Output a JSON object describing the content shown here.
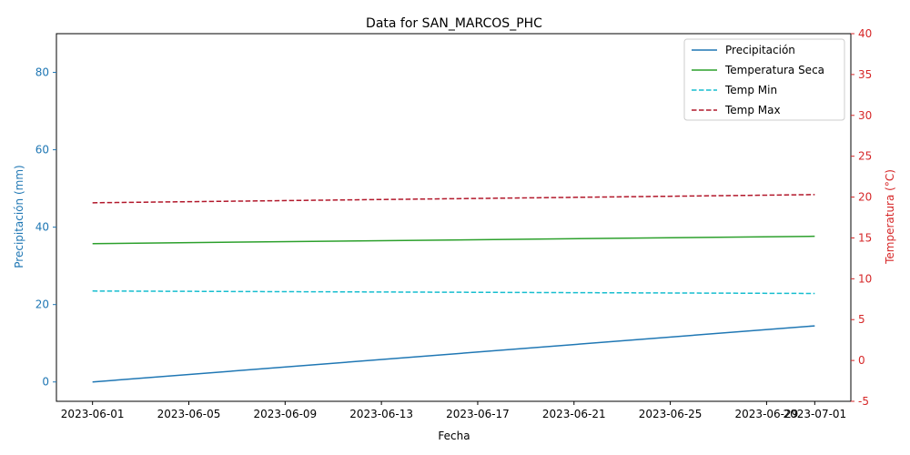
{
  "chart_data": {
    "type": "line",
    "title": "Data for SAN_MARCOS_PHC",
    "xlabel": "Fecha",
    "ylabel_left": "Precipitación (mm)",
    "ylabel_right": "Temperatura (°C)",
    "x_ticks": [
      "2023-06-01",
      "2023-06-05",
      "2023-06-09",
      "2023-06-13",
      "2023-06-17",
      "2023-06-21",
      "2023-06-25",
      "2023-06-29",
      "2023-07-01"
    ],
    "x_range": [
      "2023-05-30T12:00",
      "2023-07-02T12:00"
    ],
    "left_axis": {
      "ylim": [
        -5,
        90
      ],
      "ticks": [
        0,
        20,
        40,
        60,
        80
      ],
      "color": "#1f77b4"
    },
    "right_axis": {
      "ylim": [
        -5,
        40
      ],
      "ticks": [
        -5,
        0,
        5,
        10,
        15,
        20,
        25,
        30,
        35,
        40
      ],
      "color": "#d62728"
    },
    "legend_position": "top-right",
    "series": [
      {
        "name": "Precipitación",
        "axis": "left",
        "color": "#1f77b4",
        "dash": "solid",
        "x": [
          "2023-06-01",
          "2023-07-01"
        ],
        "values": [
          0.0,
          14.5
        ]
      },
      {
        "name": "Temperatura Seca",
        "axis": "right",
        "color": "#2ca02c",
        "dash": "solid",
        "x": [
          "2023-06-01",
          "2023-07-01"
        ],
        "values": [
          14.3,
          15.2
        ]
      },
      {
        "name": "Temp Min",
        "axis": "right",
        "color": "#17becf",
        "dash": "dashed",
        "x": [
          "2023-06-01",
          "2023-07-01"
        ],
        "values": [
          8.5,
          8.2
        ]
      },
      {
        "name": "Temp Max",
        "axis": "right",
        "color": "#b2182b",
        "dash": "dashed",
        "x": [
          "2023-06-01",
          "2023-07-01"
        ],
        "values": [
          19.3,
          20.3
        ]
      }
    ]
  }
}
